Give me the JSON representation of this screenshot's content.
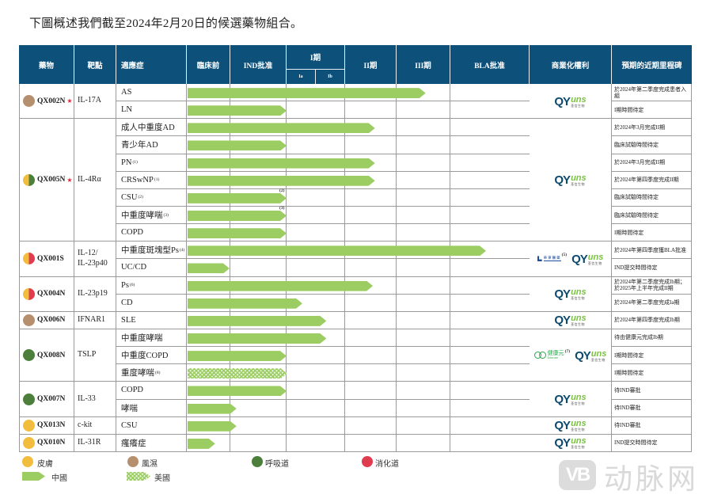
{
  "title": "下圖概述我們截至2024年2月20日的候選藥物組合。",
  "header": {
    "drug": "藥物",
    "target": "靶點",
    "indication": "適應症",
    "preclinical": "臨床前",
    "ind": "IND批准",
    "phase1": "I期",
    "phase1a": "Ia",
    "phase1b": "Ib",
    "phase2": "II期",
    "phase3": "III期",
    "bla": "BLA批准",
    "commercial": "商業化權利",
    "milestone": "預期的近期里程碑"
  },
  "company_logo": {
    "mark": "QY",
    "word": "uns",
    "cn": "荃信生物"
  },
  "colors": {
    "header": "#0d5079",
    "bar_china": "#9ccd63",
    "skin": "#f2bd3c",
    "rheumatology": "#b68f6f",
    "respiratory": "#4c7f3c",
    "digestive": "#e03c50",
    "star": "#e2233a"
  },
  "pipeline": {
    "drugs": [
      {
        "name": "QX002N",
        "star": true,
        "star_glyph": "★",
        "area_colors": [
          "#b68f6f"
        ],
        "target": "IL-17A",
        "partners": [],
        "rows": [
          {
            "indication": "AS",
            "note": "",
            "progress": 4.54,
            "region": "china",
            "bar_note": "",
            "milestone": "於2024年第二季度完成患者入組"
          },
          {
            "indication": "LN",
            "note": "",
            "progress": 2.0,
            "region": "china",
            "bar_note": "",
            "milestone": "I期時間待定"
          }
        ]
      },
      {
        "name": "QX005N",
        "star": true,
        "star_glyph": "★",
        "area_colors": [
          "#f2bd3c",
          "#4c7f3c"
        ],
        "target": "IL-4Rα",
        "partners": [],
        "rows": [
          {
            "indication": "成人中重度AD",
            "note": "",
            "progress": 3.58,
            "region": "china",
            "bar_note": "",
            "milestone": "於2024年3月完成II期"
          },
          {
            "indication": "青少年AD",
            "note": "",
            "progress": 2.0,
            "region": "china",
            "bar_note": "",
            "milestone": "臨床試驗時間待定"
          },
          {
            "indication": "PN",
            "note": "(1)",
            "progress": 3.58,
            "region": "china",
            "bar_note": "",
            "milestone": "於2024年3月完成II期"
          },
          {
            "indication": "CRSwNP",
            "note": "(1)",
            "progress": 3.58,
            "region": "china",
            "bar_note": "",
            "milestone": "於2024年第四季度完成II期"
          },
          {
            "indication": "CSU",
            "note": "(2)",
            "progress": 2.0,
            "region": "china",
            "bar_note": "(2)",
            "milestone": "臨床試驗時間待定"
          },
          {
            "indication": "中重度哮喘",
            "note": "(3)",
            "progress": 2.0,
            "region": "china",
            "bar_note": "(3)",
            "milestone": "臨床試驗時間待定"
          },
          {
            "indication": "COPD",
            "note": "",
            "progress": 2.0,
            "region": "china",
            "bar_note": "",
            "milestone": "I期時間待定"
          }
        ]
      },
      {
        "name": "QX001S",
        "star": false,
        "area_colors": [
          "#f2bd3c",
          "#e03c50"
        ],
        "target": "IL-12/\nIL-23p40",
        "partners": [
          {
            "type": "huadong",
            "name": "華東醫藥",
            "note": "(5)"
          }
        ],
        "rows": [
          {
            "indication": "中重度斑塊型Ps",
            "note": "(4)",
            "progress": 5.45,
            "region": "china",
            "bar_note": "",
            "milestone": "於2024年第四季度獲BLA批准"
          },
          {
            "indication": "UC/CD",
            "note": "",
            "progress": 0.98,
            "region": "china",
            "bar_note": "",
            "milestone": "IND提交時間待定"
          }
        ]
      },
      {
        "name": "QX004N",
        "star": false,
        "area_colors": [
          "#f2bd3c",
          "#e03c50"
        ],
        "target": "IL-23p19",
        "partners": [],
        "rows": [
          {
            "indication": "Ps",
            "note": "(6)",
            "progress": 3.54,
            "region": "china",
            "bar_note": "",
            "milestone": "於2024年第二季度完成Ib期；於2025年上半年完成II期"
          },
          {
            "indication": "CD",
            "note": "",
            "progress": 2.27,
            "region": "china",
            "bar_note": "",
            "milestone": "於2024年第二季度完成Ia期"
          }
        ]
      },
      {
        "name": "QX006N",
        "star": false,
        "area_colors": [
          "#b68f6f"
        ],
        "target": "IFNAR1",
        "partners": [],
        "rows": [
          {
            "indication": "SLE",
            "note": "",
            "progress": 2.68,
            "region": "china",
            "bar_note": "",
            "milestone": "於2024年第四季度完成Ib期"
          }
        ]
      },
      {
        "name": "QX008N",
        "star": false,
        "area_colors": [
          "#4c7f3c"
        ],
        "target": "TSLP",
        "partners": [
          {
            "type": "joincare",
            "name": "健康元",
            "sub": "Joincare",
            "note": "(7)"
          }
        ],
        "rows": [
          {
            "indication": "中重度哮喘",
            "note": "",
            "progress": 2.68,
            "region": "china",
            "bar_note": "",
            "milestone": "待由健康元完成Ib期"
          },
          {
            "indication": "中重度COPD",
            "note": "",
            "progress": 2.0,
            "region": "china",
            "bar_note": "",
            "milestone": "I期時間待定"
          },
          {
            "indication": "重度哮喘",
            "note": "(8)",
            "progress": 2.01,
            "region": "us",
            "bar_note": "",
            "milestone": "I期時間待定"
          }
        ]
      },
      {
        "name": "QX007N",
        "star": false,
        "area_colors": [
          "#4c7f3c"
        ],
        "target": "IL-33",
        "partners": [],
        "rows": [
          {
            "indication": "COPD",
            "note": "",
            "progress": 2.0,
            "region": "china",
            "bar_note": "",
            "milestone": "待IND審批"
          },
          {
            "indication": "哮喘",
            "note": "",
            "progress": 1.11,
            "region": "china",
            "bar_note": "",
            "milestone": "待IND審批"
          }
        ]
      },
      {
        "name": "QX013N",
        "star": false,
        "area_colors": [
          "#f2bd3c"
        ],
        "target": "c-kit",
        "partners": [],
        "rows": [
          {
            "indication": "CSU",
            "note": "",
            "progress": 1.11,
            "region": "china",
            "bar_note": "",
            "milestone": "待IND審批"
          }
        ]
      },
      {
        "name": "QX010N",
        "star": false,
        "area_colors": [
          "#f2bd3c"
        ],
        "target": "IL-31R",
        "partners": [],
        "rows": [
          {
            "indication": "瘙癢症",
            "note": "",
            "progress": 0.65,
            "region": "china",
            "bar_note": "",
            "milestone": "IND提交時間待定"
          }
        ]
      }
    ]
  },
  "legend": {
    "areas": [
      {
        "label": "皮膚",
        "color": "#f2bd3c"
      },
      {
        "label": "風濕",
        "color": "#b68f6f"
      },
      {
        "label": "呼吸道",
        "color": "#4c7f3c"
      },
      {
        "label": "消化道",
        "color": "#e03c50"
      }
    ],
    "regions": [
      {
        "label": "中國",
        "pattern": "solid"
      },
      {
        "label": "美國",
        "pattern": "hatched"
      }
    ]
  },
  "watermark": {
    "badge": "VB",
    "text": "动脉网"
  },
  "chart_data": {
    "type": "bar",
    "orientation": "horizontal",
    "title": "下圖概述我們截至2024年2月20日的候選藥物組合。",
    "stages": [
      "臨床前",
      "IND批准",
      "I期 (Ia/Ib)",
      "II期",
      "III期",
      "BLA批准"
    ],
    "value_unit": "stage position (0 = start of 臨床前, 6 = end of BLA批准)",
    "categories": [
      "QX002N AS",
      "QX002N LN",
      "QX005N 成人中重度AD",
      "QX005N 青少年AD",
      "QX005N PN",
      "QX005N CRSwNP",
      "QX005N CSU",
      "QX005N 中重度哮喘",
      "QX005N COPD",
      "QX001S 中重度斑塊型Ps",
      "QX001S UC/CD",
      "QX004N Ps",
      "QX004N CD",
      "QX006N SLE",
      "QX008N 中重度哮喘",
      "QX008N 中重度COPD",
      "QX008N 重度哮喘",
      "QX007N COPD",
      "QX007N 哮喘",
      "QX013N CSU",
      "QX010N 瘙癢症"
    ],
    "series": [
      {
        "name": "中國",
        "values": [
          4.54,
          2.0,
          3.58,
          2.0,
          3.58,
          3.58,
          2.0,
          2.0,
          2.0,
          5.45,
          0.98,
          3.54,
          2.27,
          2.68,
          2.68,
          2.0,
          null,
          2.0,
          1.11,
          1.11,
          0.65
        ]
      },
      {
        "name": "美國",
        "values": [
          null,
          null,
          null,
          null,
          null,
          null,
          null,
          null,
          null,
          null,
          null,
          null,
          null,
          null,
          null,
          null,
          2.01,
          null,
          null,
          null,
          null
        ]
      }
    ],
    "legend_position": "bottom",
    "grid": true
  }
}
